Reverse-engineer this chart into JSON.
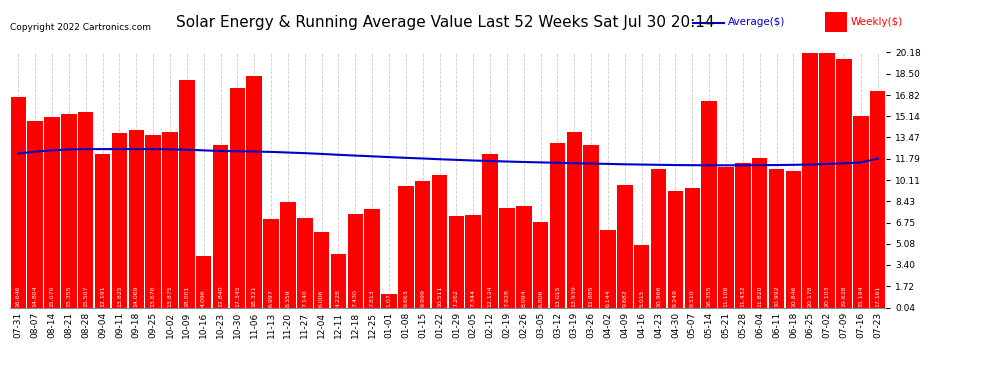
{
  "title": "Solar Energy & Running Average Value Last 52 Weeks Sat Jul 30 20:14",
  "copyright": "Copyright 2022 Cartronics.com",
  "legend_avg": "Average($)",
  "legend_weekly": "Weekly($)",
  "bar_color": "#ff0000",
  "avg_line_color": "#0000cc",
  "background_color": "#ffffff",
  "grid_color": "#cccccc",
  "ylim_min": 0.04,
  "ylim_max": 20.18,
  "yticks": [
    0.04,
    1.72,
    3.4,
    5.08,
    6.75,
    8.43,
    10.11,
    11.79,
    13.47,
    15.14,
    16.82,
    18.5,
    20.18
  ],
  "categories": [
    "07-31",
    "08-07",
    "08-14",
    "08-21",
    "08-28",
    "09-04",
    "09-11",
    "09-18",
    "09-25",
    "10-02",
    "10-09",
    "10-16",
    "10-23",
    "10-30",
    "11-06",
    "11-13",
    "11-20",
    "11-27",
    "12-04",
    "12-11",
    "12-18",
    "12-25",
    "01-01",
    "01-08",
    "01-15",
    "01-22",
    "01-29",
    "02-05",
    "02-12",
    "02-19",
    "02-26",
    "03-05",
    "03-12",
    "03-19",
    "03-26",
    "04-02",
    "04-09",
    "04-16",
    "04-23",
    "04-30",
    "05-07",
    "05-14",
    "05-21",
    "05-28",
    "06-04",
    "06-11",
    "06-18",
    "06-25",
    "07-02",
    "07-09",
    "07-16",
    "07-23"
  ],
  "weekly_values": [
    16.646,
    14.804,
    15.07,
    15.355,
    15.507,
    12.191,
    13.825,
    14.069,
    13.676,
    13.875,
    18.001,
    4.096,
    12.84,
    17.345,
    18.321,
    6.997,
    8.359,
    7.14,
    6.006,
    4.228,
    7.43,
    7.813,
    1.073,
    9.663,
    9.999,
    10.511,
    7.262,
    7.344,
    12.124,
    7.928,
    8.094,
    6.806,
    13.015,
    13.939,
    12.885,
    6.144,
    9.682,
    5.015,
    10.966,
    9.249,
    9.51,
    16.355,
    11.108,
    11.432,
    11.82,
    10.992,
    10.846,
    20.178,
    20.103,
    19.628,
    15.194,
    17.161
  ],
  "avg_values": [
    12.2,
    12.35,
    12.45,
    12.52,
    12.55,
    12.55,
    12.55,
    12.55,
    12.55,
    12.53,
    12.5,
    12.45,
    12.4,
    12.38,
    12.36,
    12.33,
    12.28,
    12.23,
    12.17,
    12.1,
    12.04,
    11.98,
    11.92,
    11.86,
    11.81,
    11.75,
    11.7,
    11.65,
    11.61,
    11.57,
    11.53,
    11.5,
    11.47,
    11.44,
    11.41,
    11.38,
    11.35,
    11.33,
    11.31,
    11.29,
    11.28,
    11.27,
    11.27,
    11.27,
    11.28,
    11.29,
    11.31,
    11.33,
    11.38,
    11.43,
    11.5,
    11.79
  ],
  "title_fontsize": 11,
  "copyright_fontsize": 6.5,
  "label_fontsize": 4.5,
  "tick_fontsize": 6.5,
  "legend_fontsize": 7.5
}
